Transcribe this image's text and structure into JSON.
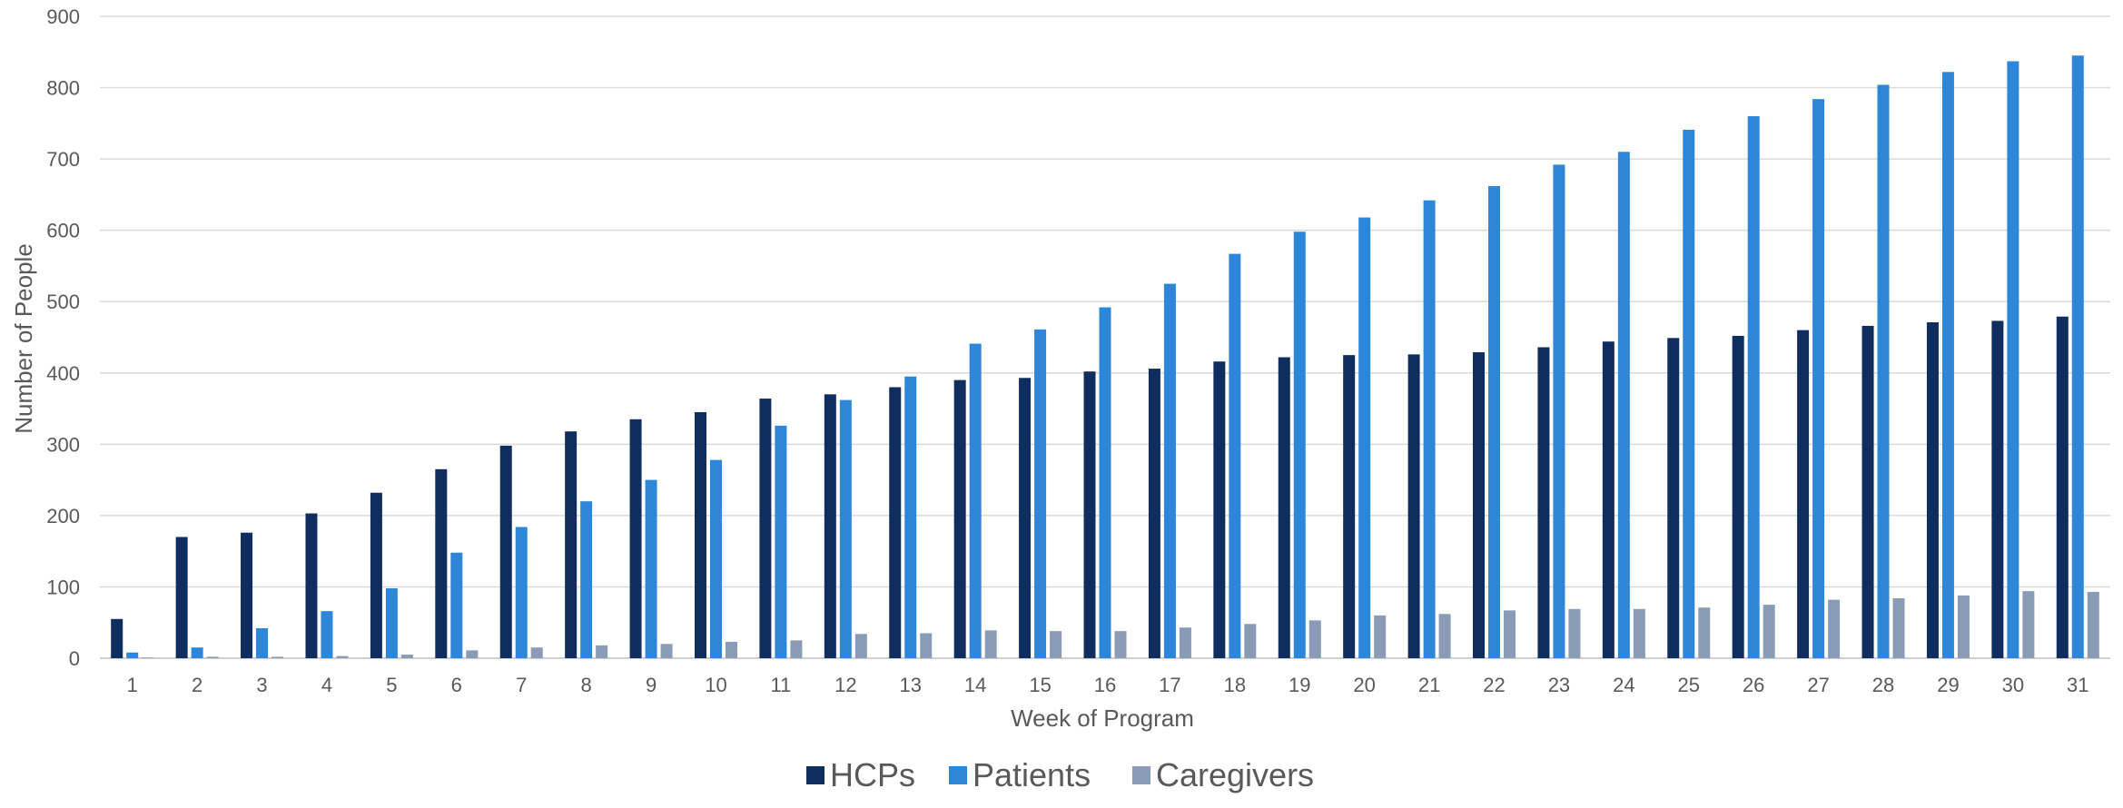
{
  "chart_data": {
    "type": "bar",
    "xlabel": "Week of Program",
    "ylabel": "Number of People",
    "ylim": [
      0,
      900
    ],
    "yticks": [
      0,
      100,
      200,
      300,
      400,
      500,
      600,
      700,
      800,
      900
    ],
    "grid": "horizontal",
    "legend_position": "bottom",
    "categories": [
      "1",
      "2",
      "3",
      "4",
      "5",
      "6",
      "7",
      "8",
      "9",
      "10",
      "11",
      "12",
      "13",
      "14",
      "15",
      "16",
      "17",
      "18",
      "19",
      "20",
      "21",
      "22",
      "23",
      "24",
      "25",
      "26",
      "27",
      "28",
      "29",
      "30",
      "31"
    ],
    "series": [
      {
        "name": "HCPs",
        "color": "#0f2d5e",
        "values": [
          55,
          170,
          176,
          203,
          232,
          265,
          298,
          318,
          335,
          345,
          364,
          370,
          380,
          390,
          393,
          402,
          406,
          416,
          422,
          425,
          426,
          429,
          436,
          444,
          449,
          452,
          460,
          466,
          471,
          473,
          479
        ]
      },
      {
        "name": "Patients",
        "color": "#2e86d9",
        "values": [
          8,
          15,
          42,
          66,
          98,
          148,
          184,
          220,
          250,
          278,
          326,
          362,
          395,
          441,
          461,
          492,
          525,
          567,
          598,
          618,
          642,
          662,
          692,
          710,
          741,
          760,
          784,
          804,
          822,
          837,
          845
        ]
      },
      {
        "name": "Caregivers",
        "color": "#8a9bb5",
        "values": [
          1,
          2,
          2,
          3,
          5,
          11,
          15,
          18,
          20,
          23,
          25,
          34,
          35,
          39,
          38,
          38,
          43,
          48,
          53,
          60,
          62,
          67,
          69,
          69,
          71,
          75,
          82,
          84,
          88,
          94,
          93
        ]
      }
    ]
  }
}
